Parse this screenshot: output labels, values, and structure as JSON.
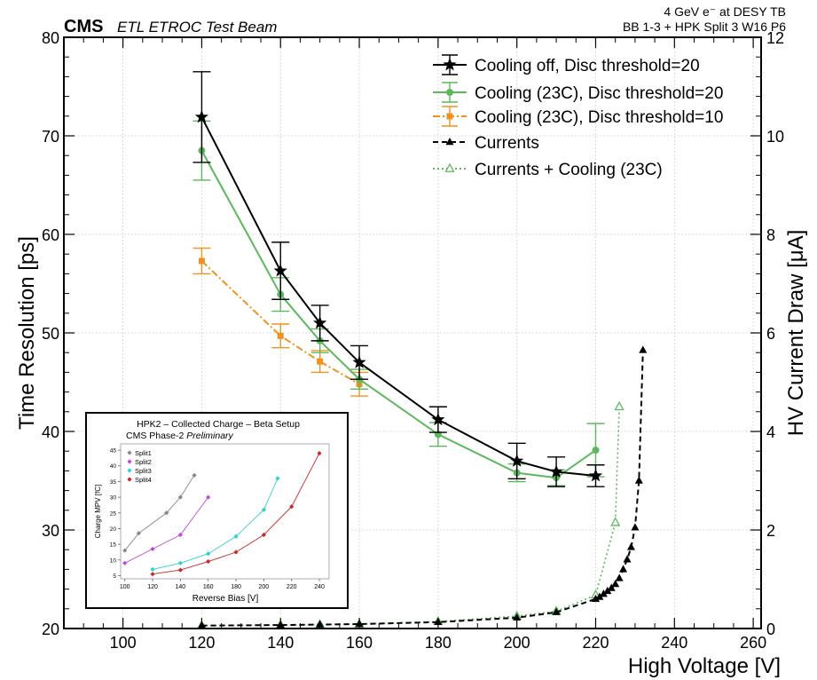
{
  "header": {
    "experiment": "CMS",
    "subtitle": "ETL ETROC Test Beam",
    "beam_line1": "4 GeV e⁻ at DESY TB",
    "beam_line2": "BB 1-3 + HPK Split 3 W16 P6"
  },
  "chart_data": [
    {
      "type": "line",
      "xlabel": "High Voltage [V]",
      "ylabel": "Time Resolution [ps]",
      "y2label": "HV Current Draw [μA]",
      "xlim": [
        85,
        262
      ],
      "ylim": [
        20,
        80
      ],
      "y2lim": [
        0,
        12
      ],
      "xticks": [
        100,
        120,
        140,
        160,
        180,
        200,
        220,
        240,
        260
      ],
      "yticks": [
        20,
        30,
        40,
        50,
        60,
        70,
        80
      ],
      "y2ticks": [
        0,
        2,
        4,
        6,
        8,
        10,
        12
      ],
      "grid": true,
      "legend_position": "top-right",
      "series": [
        {
          "name": "Cooling off, Disc threshold=20",
          "axis": "left",
          "color": "#000000",
          "marker": "star",
          "x": [
            120,
            140,
            150,
            160,
            180,
            200,
            210,
            220
          ],
          "y": [
            71.9,
            56.3,
            51.0,
            47.0,
            41.2,
            37.0,
            35.9,
            35.5
          ],
          "err": [
            4.6,
            2.9,
            1.8,
            1.7,
            1.3,
            1.8,
            1.5,
            1.1
          ]
        },
        {
          "name": "Cooling (23C), Disc threshold=20",
          "axis": "left",
          "color": "#5cb85c",
          "marker": "circle",
          "x": [
            120,
            140,
            150,
            160,
            180,
            200,
            210,
            220
          ],
          "y": [
            68.5,
            53.9,
            49.2,
            45.3,
            39.7,
            35.8,
            35.3,
            38.1
          ],
          "err": [
            3.0,
            1.7,
            1.2,
            1.0,
            1.2,
            0.9,
            0.8,
            2.7
          ]
        },
        {
          "name": "Cooling (23C), Disc threshold=10",
          "axis": "left",
          "color": "#f0921f",
          "marker": "square",
          "x": [
            120,
            140,
            150,
            160
          ],
          "y": [
            57.3,
            49.7,
            47.1,
            44.8
          ],
          "err": [
            1.3,
            1.2,
            1.1,
            1.2
          ]
        },
        {
          "name": "Currents",
          "axis": "right",
          "color": "#000000",
          "marker": "triangle",
          "x": [
            120,
            140,
            150,
            160,
            180,
            200,
            210,
            220,
            221,
            222,
            223,
            224,
            225,
            226,
            227,
            228,
            229,
            230,
            231,
            232
          ],
          "y": [
            0.06,
            0.07,
            0.08,
            0.09,
            0.13,
            0.22,
            0.33,
            0.6,
            0.64,
            0.7,
            0.76,
            0.82,
            0.9,
            1.02,
            1.2,
            1.4,
            1.65,
            2.05,
            3.0,
            5.65
          ]
        },
        {
          "name": "Currents + Cooling (23C)",
          "axis": "right",
          "color": "#5cb85c",
          "marker": "triangle-open",
          "x": [
            120,
            140,
            150,
            160,
            180,
            200,
            210,
            220,
            225,
            226
          ],
          "y": [
            0.06,
            0.07,
            0.08,
            0.09,
            0.14,
            0.25,
            0.35,
            0.68,
            2.15,
            4.5
          ]
        }
      ]
    },
    {
      "type": "line",
      "title_line1": "HPK2 – Collected Charge – Beta Setup",
      "title_line2_normal": "CMS Phase-2",
      "title_line2_italic": "Preliminary",
      "xlabel": "Reverse Bias [V]",
      "ylabel": "Charge MPV [fC]",
      "xlim": [
        97,
        247
      ],
      "ylim": [
        4,
        47
      ],
      "xticks": [
        100,
        120,
        140,
        160,
        180,
        200,
        220,
        240
      ],
      "yticks": [
        5,
        10,
        15,
        20,
        25,
        30,
        35,
        40,
        45
      ],
      "grid": false,
      "legend_position": "top-left",
      "series": [
        {
          "name": "Split1",
          "color": "#888888",
          "x": [
            100,
            110,
            130,
            140,
            150
          ],
          "y": [
            13,
            18.5,
            25,
            30,
            37
          ]
        },
        {
          "name": "Split2",
          "color": "#c04ad8",
          "x": [
            100,
            120,
            140,
            160
          ],
          "y": [
            9,
            13.5,
            18,
            30
          ]
        },
        {
          "name": "Split3",
          "color": "#2ed3c8",
          "x": [
            120,
            140,
            160,
            180,
            200,
            210
          ],
          "y": [
            7,
            9,
            12,
            17.5,
            26,
            36
          ]
        },
        {
          "name": "Split4",
          "color": "#c82828",
          "x": [
            120,
            140,
            160,
            180,
            200,
            220,
            240
          ],
          "y": [
            5.5,
            6.8,
            9.5,
            12.5,
            18,
            27,
            44
          ]
        }
      ]
    }
  ]
}
